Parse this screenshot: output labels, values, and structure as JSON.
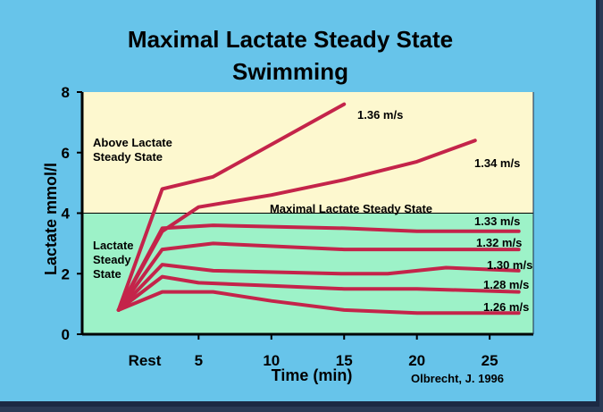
{
  "chart_data": {
    "type": "line",
    "title": "Maximal Lactate Steady State",
    "subtitle": "Swimming",
    "xlabel": "Time (min)",
    "ylabel": "Lactate mmol/l",
    "xlim": [
      -3,
      28
    ],
    "ylim": [
      0,
      8
    ],
    "x_ticks": [
      {
        "x": 0,
        "label": "Rest"
      },
      {
        "x": 5,
        "label": "5"
      },
      {
        "x": 10,
        "label": "10"
      },
      {
        "x": 15,
        "label": "15"
      },
      {
        "x": 20,
        "label": "20"
      },
      {
        "x": 25,
        "label": "25"
      }
    ],
    "y_ticks": [
      {
        "y": 0,
        "label": "0"
      },
      {
        "y": 2,
        "label": "2"
      },
      {
        "y": 4,
        "label": "4"
      },
      {
        "y": 6,
        "label": "6"
      },
      {
        "y": 8,
        "label": "8"
      }
    ],
    "threshold": {
      "y": 4,
      "label": "Maximal Lactate Steady State"
    },
    "regions": [
      {
        "label_lines": [
          "Above Lactate",
          "Steady State"
        ],
        "color": "#fdf8cf",
        "y_from": 4,
        "y_to": 8.1
      },
      {
        "label_lines": [
          "Lactate",
          "Steady",
          "State"
        ],
        "color": "#9df2c8",
        "y_from": 0,
        "y_to": 4
      }
    ],
    "series": [
      {
        "name": "1.36 m/s",
        "x": [
          -0.5,
          2.5,
          6,
          15
        ],
        "y": [
          0.8,
          4.8,
          5.2,
          7.6
        ]
      },
      {
        "name": "1.34 m/s",
        "x": [
          -0.5,
          2.5,
          5,
          10,
          15,
          20,
          24
        ],
        "y": [
          0.8,
          3.4,
          4.2,
          4.6,
          5.1,
          5.7,
          6.4
        ]
      },
      {
        "name": "1.33 m/s",
        "x": [
          -0.5,
          2.5,
          6,
          15,
          20,
          27
        ],
        "y": [
          0.8,
          3.5,
          3.6,
          3.5,
          3.4,
          3.4
        ]
      },
      {
        "name": "1.32 m/s",
        "x": [
          -0.5,
          2.5,
          6,
          15,
          20,
          27
        ],
        "y": [
          0.8,
          2.8,
          3.0,
          2.8,
          2.8,
          2.8
        ]
      },
      {
        "name": "1.30 m/s",
        "x": [
          -0.5,
          2.5,
          6,
          15,
          18,
          22,
          27
        ],
        "y": [
          0.8,
          2.3,
          2.1,
          2.0,
          2.0,
          2.2,
          2.1
        ]
      },
      {
        "name": "1.28 m/s",
        "x": [
          -0.5,
          2.5,
          5,
          10,
          15,
          20,
          27
        ],
        "y": [
          0.8,
          1.9,
          1.7,
          1.6,
          1.5,
          1.5,
          1.4
        ]
      },
      {
        "name": "1.26 m/s",
        "x": [
          -0.5,
          2.5,
          6,
          10,
          15,
          20,
          27
        ],
        "y": [
          0.8,
          1.4,
          1.4,
          1.1,
          0.8,
          0.7,
          0.7
        ]
      }
    ],
    "line_color": "#c4244a",
    "source": "Olbrecht, J. 1996",
    "grid": false,
    "legend": "labels at line ends"
  }
}
